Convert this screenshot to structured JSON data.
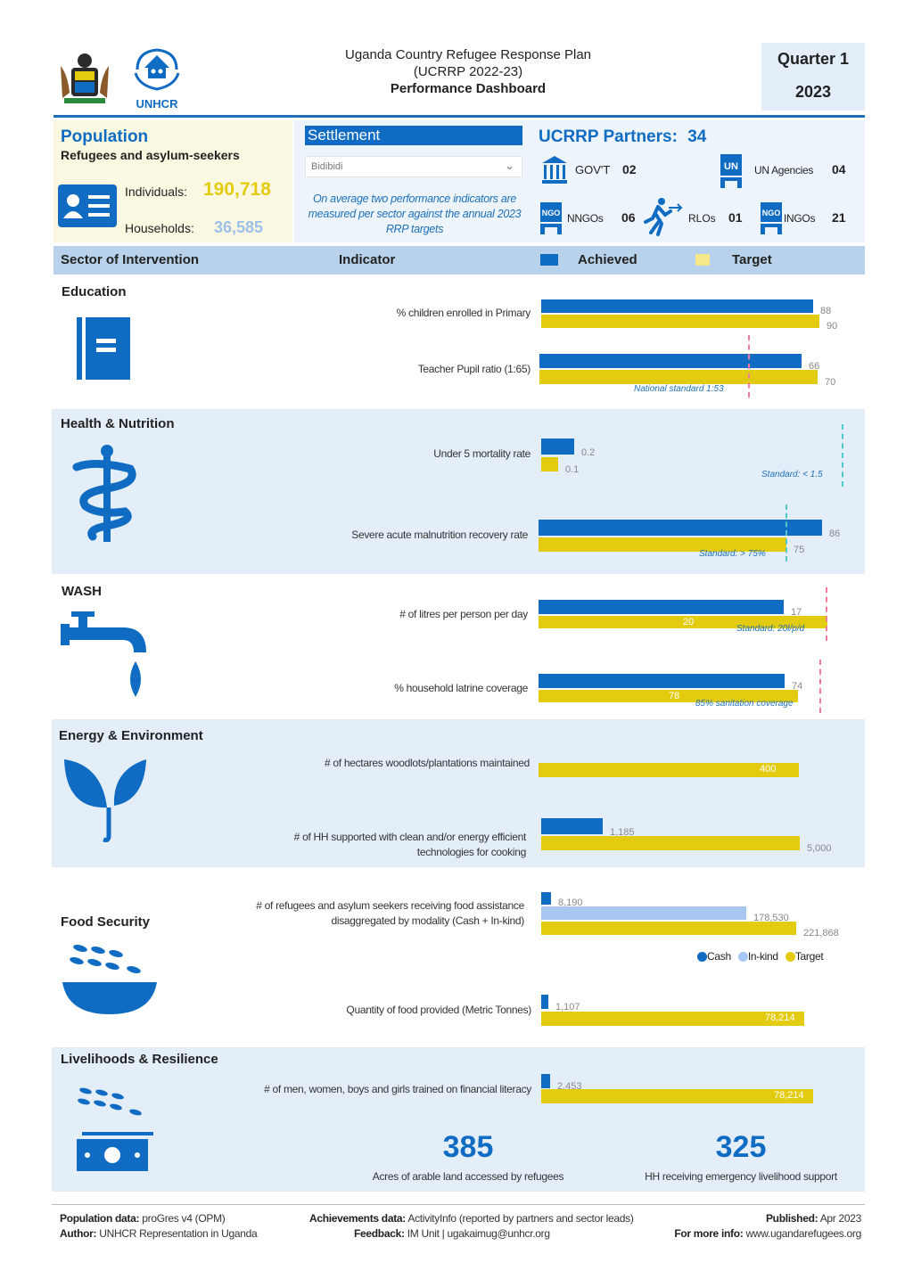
{
  "header": {
    "title_line1": "Uganda Country Refugee Response Plan",
    "title_line2": "(UCRRP 2022-23)",
    "title_line3": "Performance Dashboard",
    "quarter": "Quarter 1",
    "year": "2023",
    "unhcr_logo_text": "UNHCR"
  },
  "population": {
    "title": "Population",
    "subtitle": "Refugees and asylum-seekers",
    "individuals_label": "Individuals:",
    "individuals_value": "190,718",
    "households_label": "Households:",
    "households_value": "36,585"
  },
  "settlement": {
    "label": "Settlement",
    "selected": "Bidibidi",
    "note": "On average two performance indicators are measured per sector against the annual 2023 RRP targets"
  },
  "partners": {
    "title": "UCRRP Partners:",
    "count": "34",
    "govt_label": "GOV'T",
    "govt_value": "02",
    "un_label": "UN Agencies",
    "un_value": "04",
    "nngo_label": "NNGOs",
    "nngo_value": "06",
    "rlo_label": "RLOs",
    "rlo_value": "01",
    "ingo_label": "INGOs",
    "ingo_value": "21"
  },
  "table_header": {
    "sector": "Sector of Intervention",
    "indicator": "Indicator",
    "achieved": "Achieved",
    "target": "Target"
  },
  "sectors": {
    "education": {
      "title": "Education",
      "ind1": "% children enrolled in Primary",
      "ind1_achieved": "88",
      "ind1_target": "90",
      "ind2": "Teacher Pupil ratio (1:65)",
      "ind2_achieved": "66",
      "ind2_target": "70",
      "ind2_standard": "National standard 1:53"
    },
    "health": {
      "title": "Health & Nutrition",
      "ind1": "Under 5 mortality rate",
      "ind1_achieved": "0.2",
      "ind1_target": "0.1",
      "ind1_standard": "Standard: < 1.5",
      "ind2": "Severe acute malnutrition recovery rate",
      "ind2_achieved": "86",
      "ind2_target": "75",
      "ind2_standard": "Standard: > 75%"
    },
    "wash": {
      "title": "WASH",
      "ind1": "# of litres per person per day",
      "ind1_achieved": "17",
      "ind1_target": "20",
      "ind1_standard": "Standard: 20l/p/d",
      "ind2": "% household latrine coverage",
      "ind2_achieved": "74",
      "ind2_target": "78",
      "ind2_standard": "85% sanitation coverage"
    },
    "energy": {
      "title": "Energy & Environment",
      "ind1": "# of hectares woodlots/plantations maintained",
      "ind1_target": "400",
      "ind2_line1": "# of HH supported with clean and/or energy efficient",
      "ind2_line2": "technologies for cooking",
      "ind2_achieved": "1,185",
      "ind2_target": "5,000"
    },
    "food": {
      "title": "Food Security",
      "ind1_line1": "# of refugees and asylum seekers receiving food assistance",
      "ind1_line2": "disaggregated by modality (Cash + In-kind)",
      "ind1_cash": "8,190",
      "ind1_inkind": "178,530",
      "ind1_target": "221,868",
      "legend_cash": "Cash",
      "legend_inkind": "In-kind",
      "legend_target": "Target",
      "ind2": "Quantity of food provided (Metric Tonnes)",
      "ind2_achieved": "1,107",
      "ind2_target": "78,214"
    },
    "livelihoods": {
      "title": "Livelihoods & Resilience",
      "ind1": "# of men, women, boys and girls trained on financial literacy",
      "ind1_achieved": "2,453",
      "ind1_target": "78,214",
      "stat1_value": "385",
      "stat1_label": "Acres of arable land accessed by refugees",
      "stat2_value": "325",
      "stat2_label": "HH receiving emergency livelihood support"
    }
  },
  "chart_data": [
    {
      "type": "bar",
      "title": "Education",
      "categories": [
        "% children enrolled in Primary",
        "Teacher Pupil ratio (1:65)"
      ],
      "series": [
        {
          "name": "Achieved",
          "values": [
            88,
            66
          ]
        },
        {
          "name": "Target",
          "values": [
            90,
            70
          ]
        }
      ]
    },
    {
      "type": "bar",
      "title": "Health & Nutrition",
      "categories": [
        "Under 5 mortality rate",
        "Severe acute malnutrition recovery rate"
      ],
      "series": [
        {
          "name": "Achieved",
          "values": [
            0.2,
            86
          ]
        },
        {
          "name": "Target",
          "values": [
            0.1,
            75
          ]
        }
      ]
    },
    {
      "type": "bar",
      "title": "WASH",
      "categories": [
        "# of litres per person per day",
        "% household latrine coverage"
      ],
      "series": [
        {
          "name": "Achieved",
          "values": [
            17,
            74
          ]
        },
        {
          "name": "Target",
          "values": [
            20,
            78
          ]
        }
      ]
    },
    {
      "type": "bar",
      "title": "Energy & Environment",
      "categories": [
        "# of hectares woodlots/plantations maintained",
        "# of HH supported with clean and/or energy efficient technologies for cooking"
      ],
      "series": [
        {
          "name": "Achieved",
          "values": [
            null,
            1185
          ]
        },
        {
          "name": "Target",
          "values": [
            400,
            5000
          ]
        }
      ]
    },
    {
      "type": "bar",
      "title": "Food Security",
      "categories": [
        "# of refugees and asylum seekers receiving food assistance",
        "Quantity of food provided (Metric Tonnes)"
      ],
      "series": [
        {
          "name": "Cash",
          "values": [
            8190,
            null
          ]
        },
        {
          "name": "In-kind",
          "values": [
            178530,
            null
          ]
        },
        {
          "name": "Achieved",
          "values": [
            null,
            1107
          ]
        },
        {
          "name": "Target",
          "values": [
            221868,
            78214
          ]
        }
      ]
    },
    {
      "type": "bar",
      "title": "Livelihoods & Resilience",
      "categories": [
        "# of men, women, boys and girls trained on financial literacy"
      ],
      "series": [
        {
          "name": "Achieved",
          "values": [
            2453
          ]
        },
        {
          "name": "Target",
          "values": [
            78214
          ]
        }
      ]
    }
  ],
  "footer": {
    "pop_label": "Population data:",
    "pop_value": "proGres v4 (OPM)",
    "author_label": "Author:",
    "author_value": "UNHCR Representation in Uganda",
    "ach_label": "Achievements data:",
    "ach_value": "ActivityInfo (reported by partners and sector leads)",
    "feedback_label": "Feedback:",
    "feedback_value": "IM Unit | ugakaimug@unhcr.org",
    "published_label": "Published:",
    "published_value": "Apr 2023",
    "more_label": "For more info:",
    "more_value": "www.ugandarefugees.org"
  },
  "colors": {
    "achieved": "#0f6cc2",
    "target": "#e3cb10",
    "inkind": "#a8c7f0",
    "band": "#e4eef9"
  }
}
